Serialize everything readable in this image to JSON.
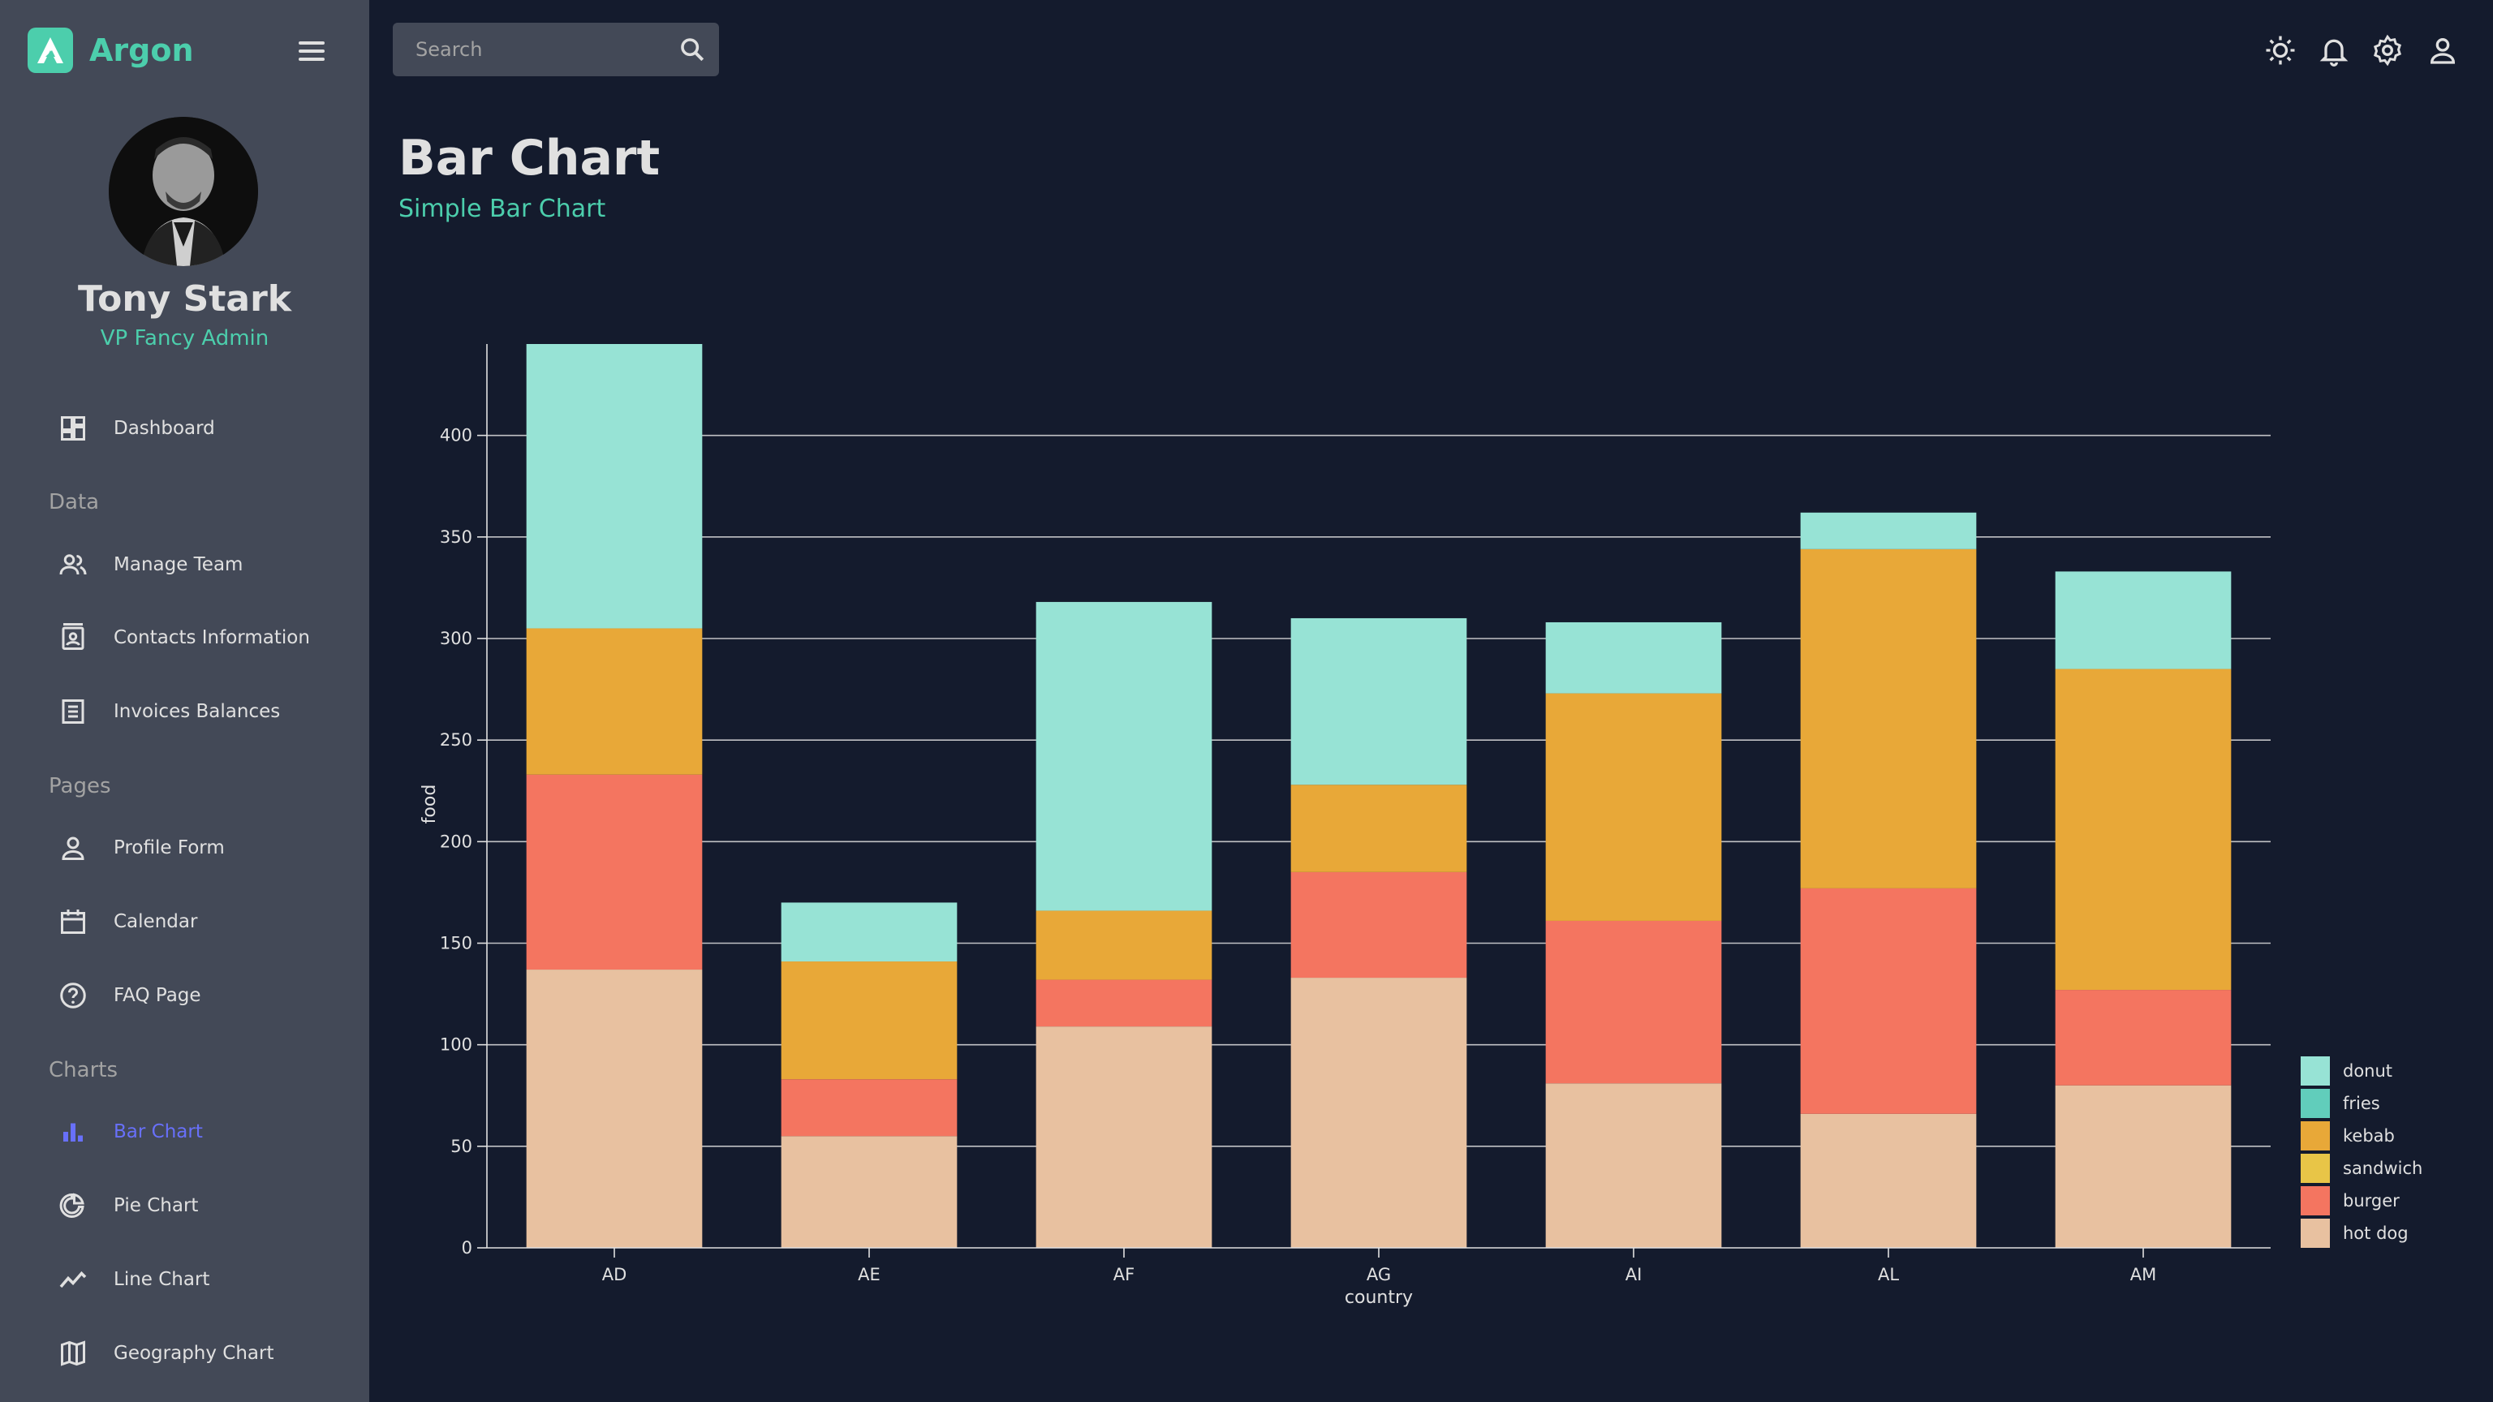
{
  "brand": {
    "name": "Argon"
  },
  "user": {
    "name": "Tony Stark",
    "role": "VP Fancy Admin"
  },
  "search": {
    "placeholder": "Search"
  },
  "sidebar": {
    "items": [
      {
        "label": "Dashboard",
        "icon": "dashboard-icon"
      },
      {
        "label": "Manage Team",
        "icon": "people-icon"
      },
      {
        "label": "Contacts Information",
        "icon": "contacts-icon"
      },
      {
        "label": "Invoices Balances",
        "icon": "receipt-icon"
      },
      {
        "label": "Profile Form",
        "icon": "person-icon"
      },
      {
        "label": "Calendar",
        "icon": "calendar-icon"
      },
      {
        "label": "FAQ Page",
        "icon": "help-icon"
      },
      {
        "label": "Bar Chart",
        "icon": "bar-chart-icon"
      },
      {
        "label": "Pie Chart",
        "icon": "pie-chart-icon"
      },
      {
        "label": "Line Chart",
        "icon": "line-chart-icon"
      },
      {
        "label": "Geography Chart",
        "icon": "map-icon"
      }
    ],
    "sections": [
      "Data",
      "Pages",
      "Charts"
    ]
  },
  "header": {
    "title": "Bar Chart",
    "subtitle": "Simple Bar Chart"
  },
  "colors": {
    "accent": "#4cceac",
    "active": "#6870fa",
    "background": "#141b2d",
    "panel": "#434957"
  },
  "chart_data": {
    "type": "bar",
    "stacked": true,
    "title": "",
    "xlabel": "country",
    "ylabel": "food",
    "ylim": [
      0,
      445
    ],
    "yticks": [
      0,
      50,
      100,
      150,
      200,
      250,
      300,
      350,
      400
    ],
    "grid": true,
    "legend_position": "bottom-right",
    "categories": [
      "AD",
      "AE",
      "AF",
      "AG",
      "AI",
      "AL",
      "AM"
    ],
    "series": [
      {
        "name": "hot dog",
        "color": "#e8c1a0",
        "values": [
          137,
          55,
          109,
          133,
          81,
          66,
          80
        ]
      },
      {
        "name": "burger",
        "color": "#f47560",
        "values": [
          96,
          28,
          23,
          52,
          80,
          111,
          47
        ]
      },
      {
        "name": "sandwich",
        "color": "#e8c547",
        "values": [
          0,
          0,
          0,
          0,
          0,
          0,
          0
        ]
      },
      {
        "name": "kebab",
        "color": "#e8a838",
        "values": [
          72,
          58,
          34,
          43,
          112,
          167,
          158
        ]
      },
      {
        "name": "fries",
        "color": "#61cdbb",
        "values": [
          0,
          0,
          0,
          0,
          0,
          0,
          0
        ]
      },
      {
        "name": "donut",
        "color": "#97e3d5",
        "values": [
          140,
          29,
          152,
          82,
          35,
          18,
          48
        ]
      }
    ],
    "legend_order": [
      "donut",
      "fries",
      "kebab",
      "sandwich",
      "burger",
      "hot dog"
    ]
  }
}
